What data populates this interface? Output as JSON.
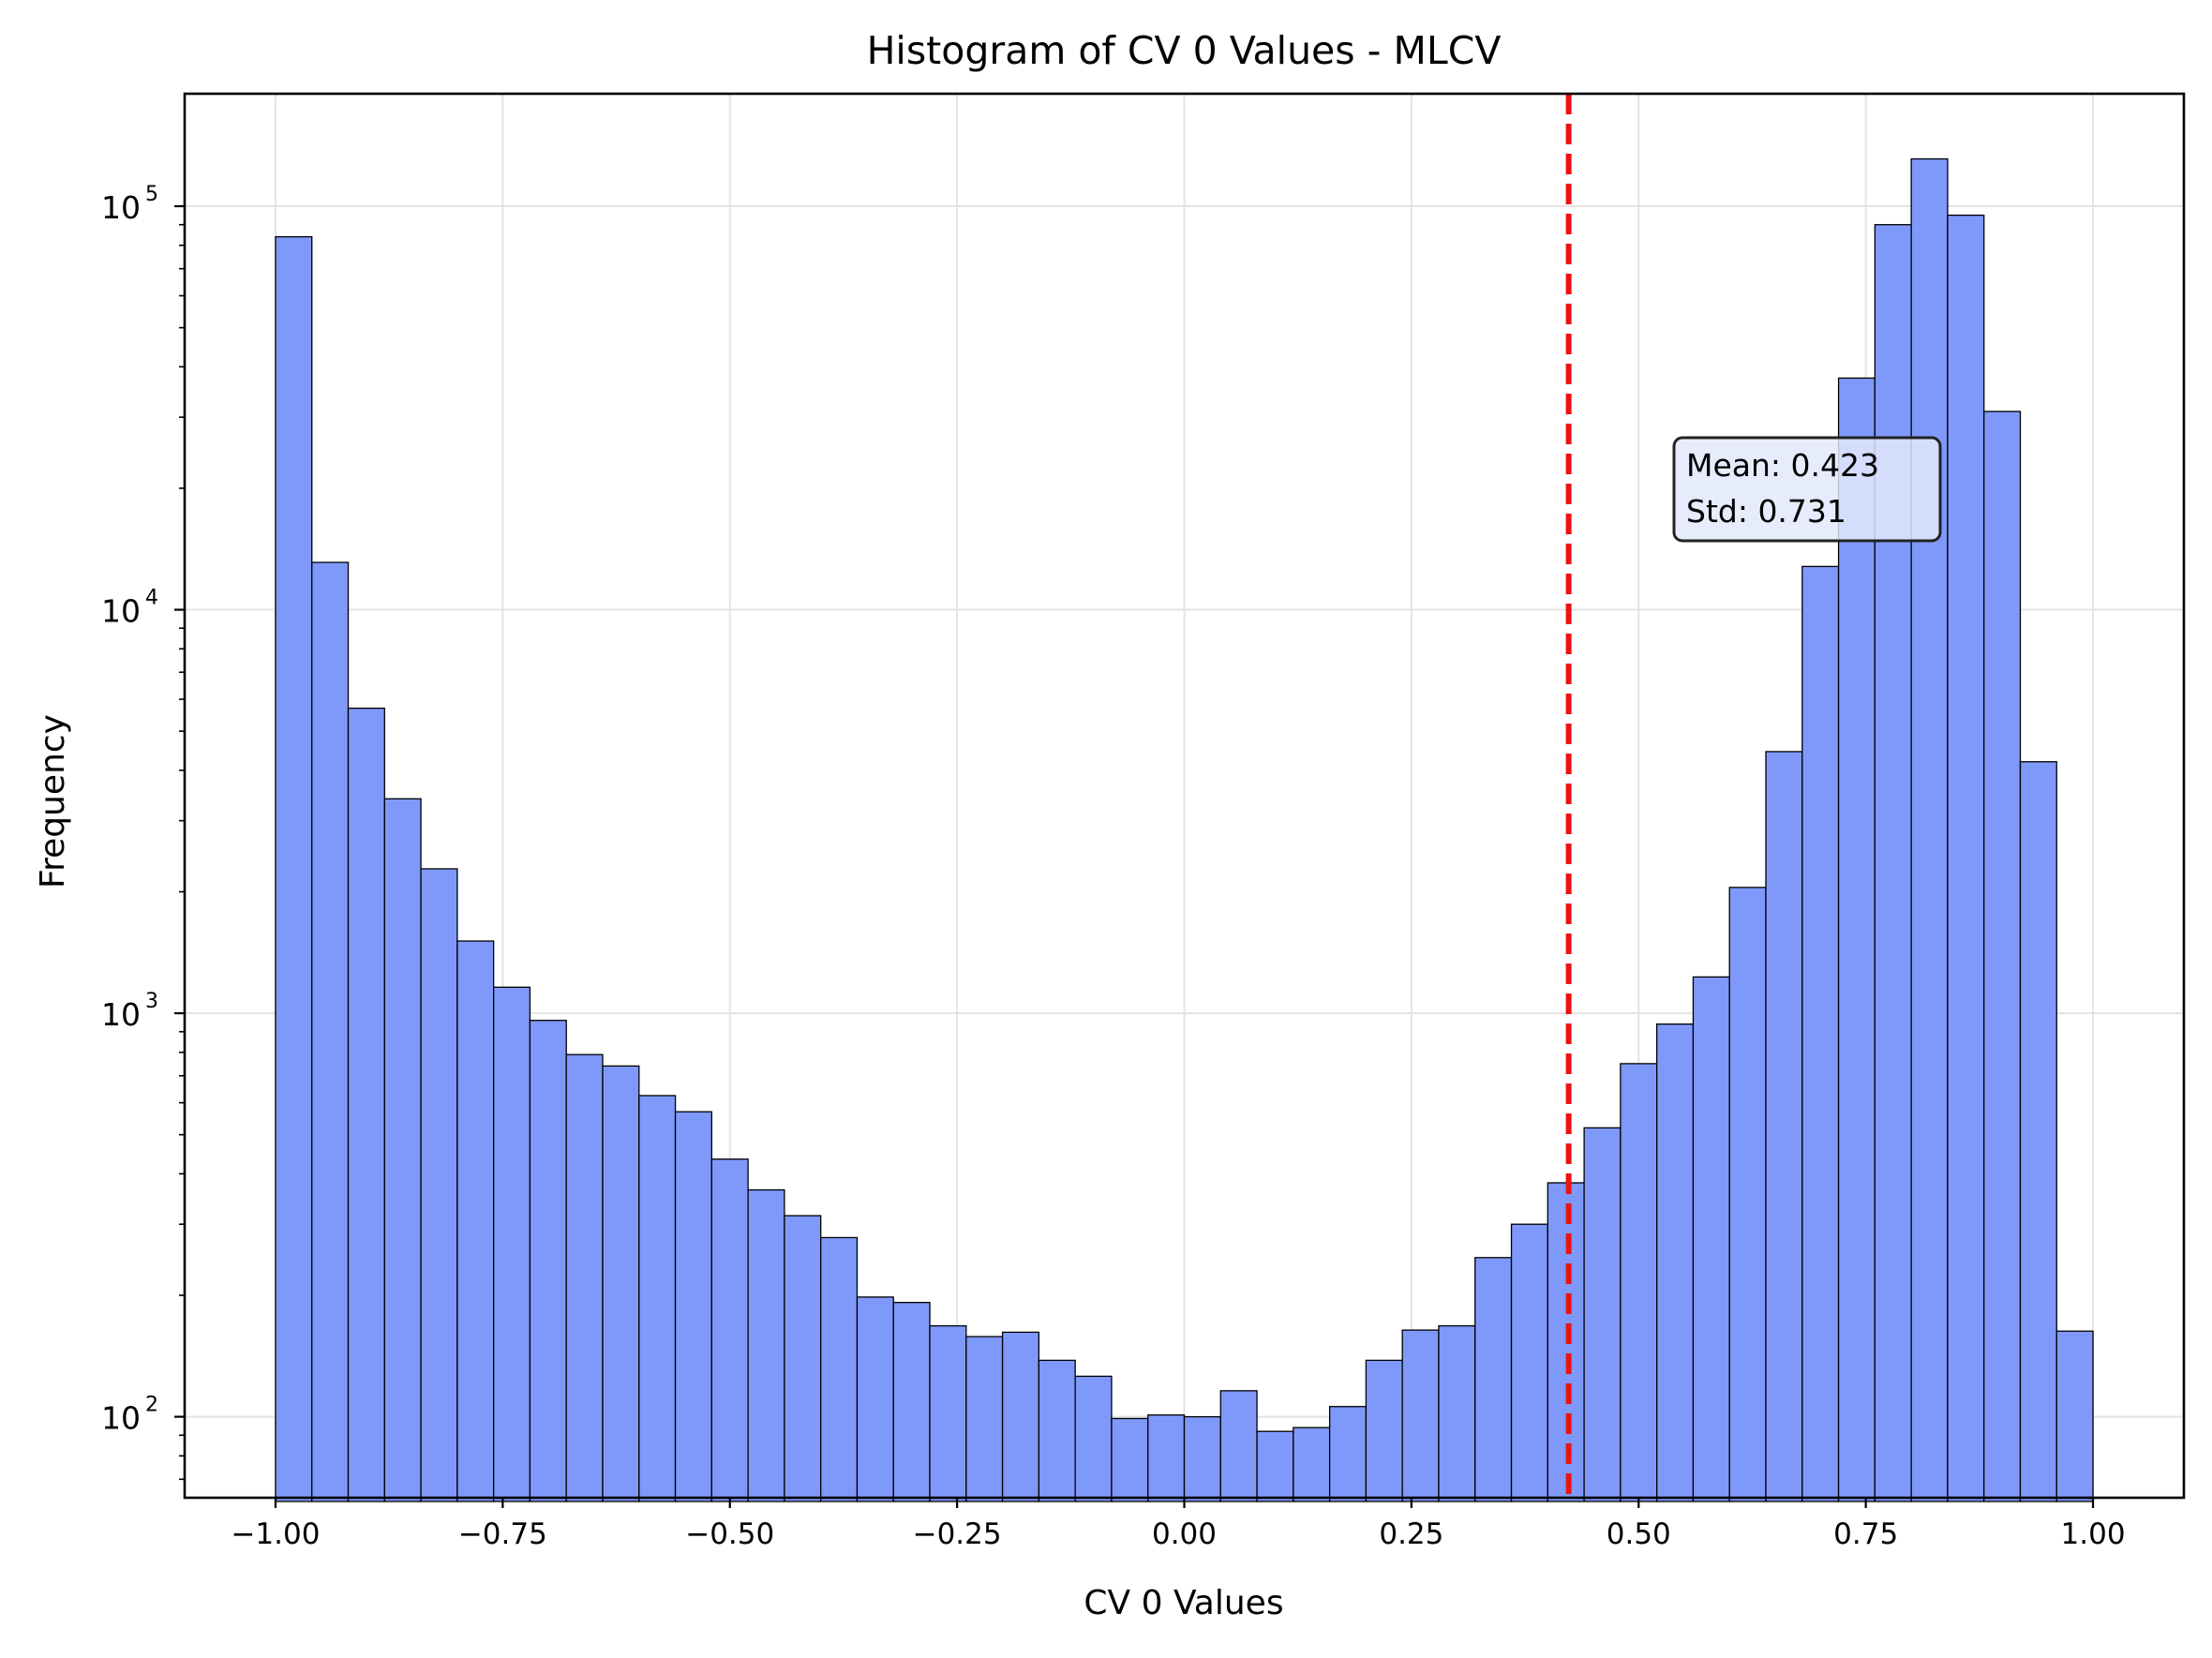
{
  "chart_data": {
    "type": "bar",
    "title": "Histogram of CV 0 Values - MLCV",
    "xlabel": "CV 0 Values",
    "ylabel": "Frequency",
    "xlim": [
      -1.1,
      1.1
    ],
    "ylim": [
      63,
      190000
    ],
    "y_scale": "log",
    "grid": true,
    "bin_start": -1.0,
    "bin_width": 0.04,
    "values": [
      84000,
      13100,
      5700,
      3400,
      2280,
      1510,
      1160,
      960,
      790,
      740,
      625,
      570,
      435,
      365,
      315,
      278,
      198,
      192,
      168,
      158,
      162,
      138,
      126,
      99,
      101,
      100,
      116,
      92,
      94,
      106,
      138,
      164,
      168,
      248,
      300,
      380,
      520,
      750,
      940,
      1230,
      2050,
      4450,
      12800,
      37500,
      90000,
      131000,
      95000,
      31000,
      4200,
      163
    ],
    "x_ticks": [
      {
        "value": -1.0,
        "label": "−1.00"
      },
      {
        "value": -0.75,
        "label": "−0.75"
      },
      {
        "value": -0.5,
        "label": "−0.50"
      },
      {
        "value": -0.25,
        "label": "−0.25"
      },
      {
        "value": 0.0,
        "label": "0.00"
      },
      {
        "value": 0.25,
        "label": "0.25"
      },
      {
        "value": 0.5,
        "label": "0.50"
      },
      {
        "value": 0.75,
        "label": "0.75"
      },
      {
        "value": 1.0,
        "label": "1.00"
      }
    ],
    "y_ticks": [
      {
        "value": 100,
        "base": "10",
        "exp": "2"
      },
      {
        "value": 1000,
        "base": "10",
        "exp": "3"
      },
      {
        "value": 10000,
        "base": "10",
        "exp": "4"
      },
      {
        "value": 100000,
        "base": "10",
        "exp": "5"
      }
    ],
    "mean_line": {
      "value": 0.423
    },
    "annotation": {
      "lines": [
        "Mean: 0.423",
        "Std: 0.731"
      ]
    },
    "colors": {
      "bar_fill": "#7f99fb",
      "bar_edge": "#000000",
      "mean_line": "#ee1111",
      "grid": "#e3e3e3",
      "annotation_fill": "#e3e9fb"
    }
  }
}
